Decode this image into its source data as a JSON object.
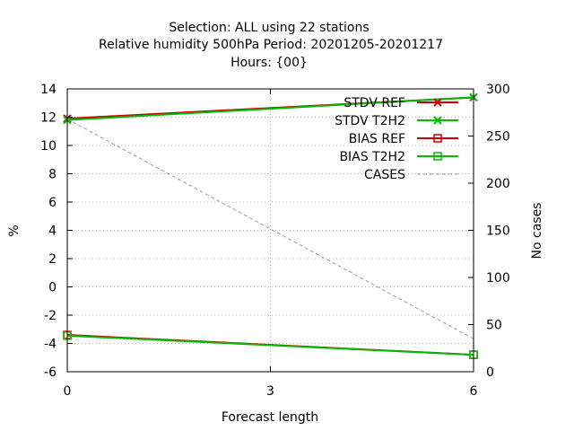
{
  "chart_data": {
    "type": "line",
    "title_lines": [
      "Selection: ALL using    22 stations",
      "Relative humidity 500hPa   Period: 20201205-20201217",
      "Hours: {00}"
    ],
    "xlabel": "Forecast length",
    "ylabel": "%",
    "y2label": "No cases",
    "x": [
      0,
      6
    ],
    "x_ticks": [
      0,
      3,
      6
    ],
    "xlim": [
      0,
      6
    ],
    "ylim": [
      -6,
      14
    ],
    "y_ticks": [
      -6,
      -4,
      -2,
      0,
      2,
      4,
      6,
      8,
      10,
      12,
      14
    ],
    "y2lim": [
      0,
      300
    ],
    "y2_ticks": [
      0,
      50,
      100,
      150,
      200,
      250,
      300
    ],
    "grid": true,
    "legend_position": "top-right",
    "series": [
      {
        "name": "STDV REF",
        "axis": "y",
        "values": [
          11.9,
          13.4
        ],
        "color": "#cc0000",
        "marker": "x"
      },
      {
        "name": "STDV T2H2",
        "axis": "y",
        "values": [
          11.8,
          13.4
        ],
        "color": "#00bb00",
        "marker": "x"
      },
      {
        "name": "BIAS REF",
        "axis": "y",
        "values": [
          -3.4,
          -4.8
        ],
        "color": "#cc0000",
        "marker": "square"
      },
      {
        "name": "BIAS T2H2",
        "axis": "y",
        "values": [
          -3.45,
          -4.8
        ],
        "color": "#00bb00",
        "marker": "square"
      },
      {
        "name": "CASES",
        "axis": "y2",
        "values": [
          268,
          35
        ],
        "color": "#999999",
        "marker": "none",
        "dash": true
      }
    ]
  }
}
